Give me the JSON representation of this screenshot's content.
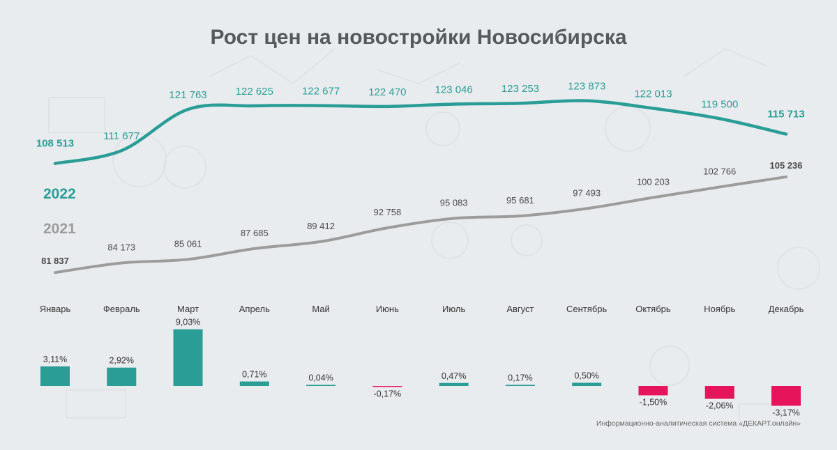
{
  "title": "Рост цен на новостройки Новосибирска",
  "source": "Информационно-аналитическая система «ДЕКАРТ.онлайн»",
  "colors": {
    "series_2022": "#2a9d96",
    "series_2021": "#9c9c9c",
    "positive": "#2a9d96",
    "negative": "#e6145a"
  },
  "chart_data": [
    {
      "type": "line",
      "title": "Рост цен на новостройки Новосибирска",
      "categories": [
        "Январь",
        "Февраль",
        "Март",
        "Апрель",
        "Май",
        "Июнь",
        "Июль",
        "Август",
        "Сентябрь",
        "Октябрь",
        "Ноябрь",
        "Декабрь"
      ],
      "series": [
        {
          "name": "2022",
          "values": [
            108513,
            111677,
            121763,
            122625,
            122677,
            122470,
            123046,
            123253,
            123873,
            122013,
            119500,
            115713
          ],
          "labels": [
            "108 513",
            "111 677",
            "121 763",
            "122 625",
            "122 677",
            "122 470",
            "123 046",
            "123 253",
            "123 873",
            "122 013",
            "119 500",
            "115 713"
          ]
        },
        {
          "name": "2021",
          "values": [
            81837,
            84173,
            85061,
            87685,
            89412,
            92758,
            95083,
            95681,
            97493,
            100203,
            102766,
            105236
          ],
          "labels": [
            "81 837",
            "84 173",
            "85 061",
            "87 685",
            "89 412",
            "92 758",
            "95 083",
            "95 681",
            "97 493",
            "100 203",
            "102 766",
            "105 236"
          ]
        }
      ],
      "legend_placement": "left",
      "grid": false
    },
    {
      "type": "bar",
      "categories": [
        "Январь",
        "Февраль",
        "Март",
        "Апрель",
        "Май",
        "Июнь",
        "Июль",
        "Август",
        "Сентябрь",
        "Октябрь",
        "Ноябрь",
        "Декабрь"
      ],
      "values": [
        3.11,
        2.92,
        9.03,
        0.71,
        0.04,
        -0.17,
        0.47,
        0.17,
        0.5,
        -1.5,
        -2.06,
        -3.17
      ],
      "labels": [
        "3,11%",
        "2,92%",
        "9,03%",
        "0,71%",
        "0,04%",
        "-0,17%",
        "0,47%",
        "0,17%",
        "0,50%",
        "-1,50%",
        "-2,06%",
        "-3,17%"
      ],
      "grid": false
    }
  ]
}
